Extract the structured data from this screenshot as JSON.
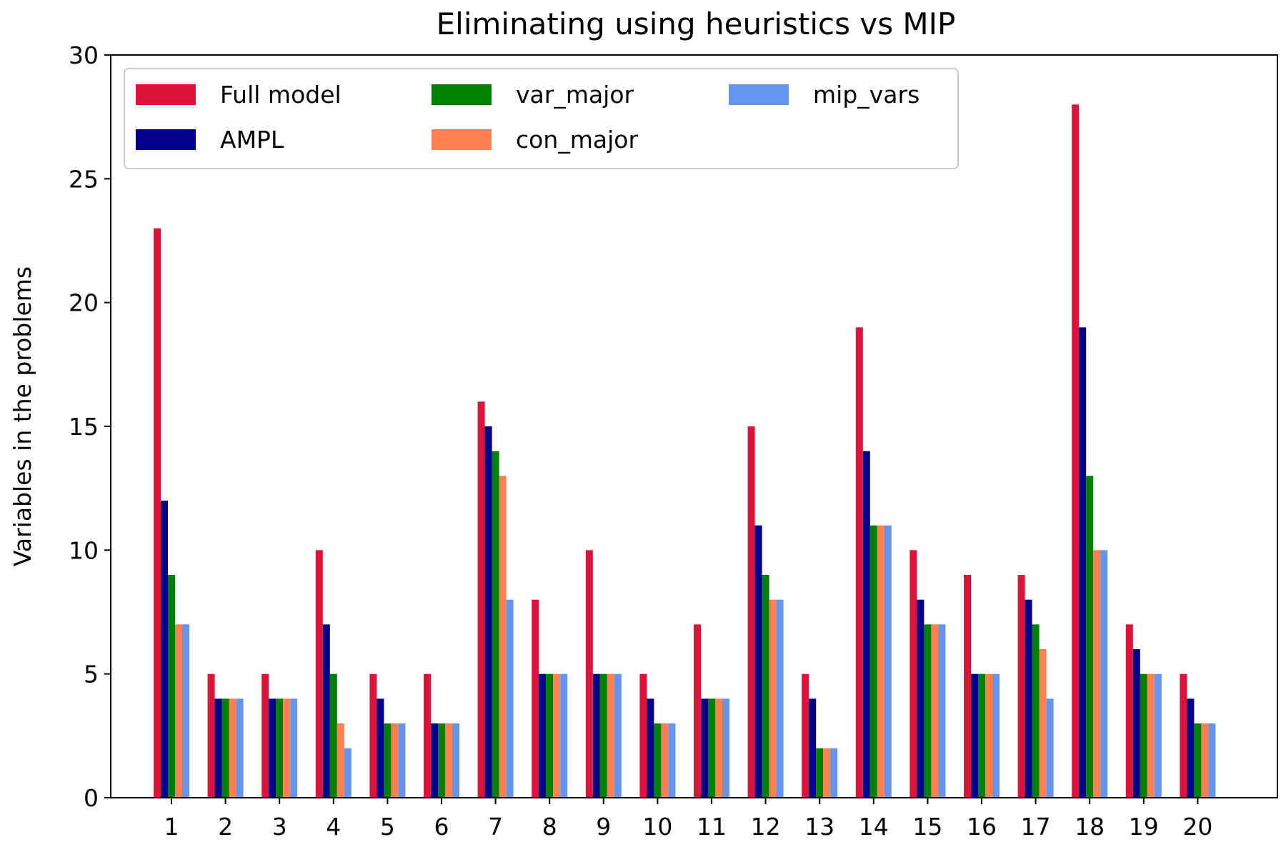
{
  "chart_data": {
    "type": "bar",
    "title": "Eliminating using heuristics vs MIP",
    "xlabel": "",
    "ylabel": "Variables in the problems",
    "ylim": [
      0,
      30
    ],
    "yticks": [
      0,
      5,
      10,
      15,
      20,
      25,
      30
    ],
    "grid": false,
    "legend_position": "top-left",
    "categories": [
      "1",
      "2",
      "3",
      "4",
      "5",
      "6",
      "7",
      "8",
      "9",
      "10",
      "11",
      "12",
      "13",
      "14",
      "15",
      "16",
      "17",
      "18",
      "19",
      "20"
    ],
    "series": [
      {
        "name": "Full model",
        "color": "#dc143c",
        "values": [
          23,
          5,
          5,
          10,
          5,
          5,
          16,
          8,
          10,
          5,
          7,
          15,
          5,
          19,
          10,
          9,
          9,
          28,
          7,
          5
        ]
      },
      {
        "name": "AMPL",
        "color": "#00008b",
        "values": [
          12,
          4,
          4,
          7,
          4,
          3,
          15,
          5,
          5,
          4,
          4,
          11,
          4,
          14,
          8,
          5,
          8,
          19,
          6,
          4
        ]
      },
      {
        "name": "var_major",
        "color": "#008000",
        "values": [
          9,
          4,
          4,
          5,
          3,
          3,
          14,
          5,
          5,
          3,
          4,
          9,
          2,
          11,
          7,
          5,
          7,
          13,
          5,
          3
        ]
      },
      {
        "name": "con_major",
        "color": "#ff7f50",
        "values": [
          7,
          4,
          4,
          3,
          3,
          3,
          13,
          5,
          5,
          3,
          4,
          8,
          2,
          11,
          7,
          5,
          6,
          10,
          5,
          3
        ]
      },
      {
        "name": "mip_vars",
        "color": "#6495ed",
        "values": [
          7,
          4,
          4,
          2,
          3,
          3,
          8,
          5,
          5,
          3,
          4,
          8,
          2,
          11,
          7,
          5,
          4,
          10,
          5,
          3
        ]
      }
    ]
  }
}
